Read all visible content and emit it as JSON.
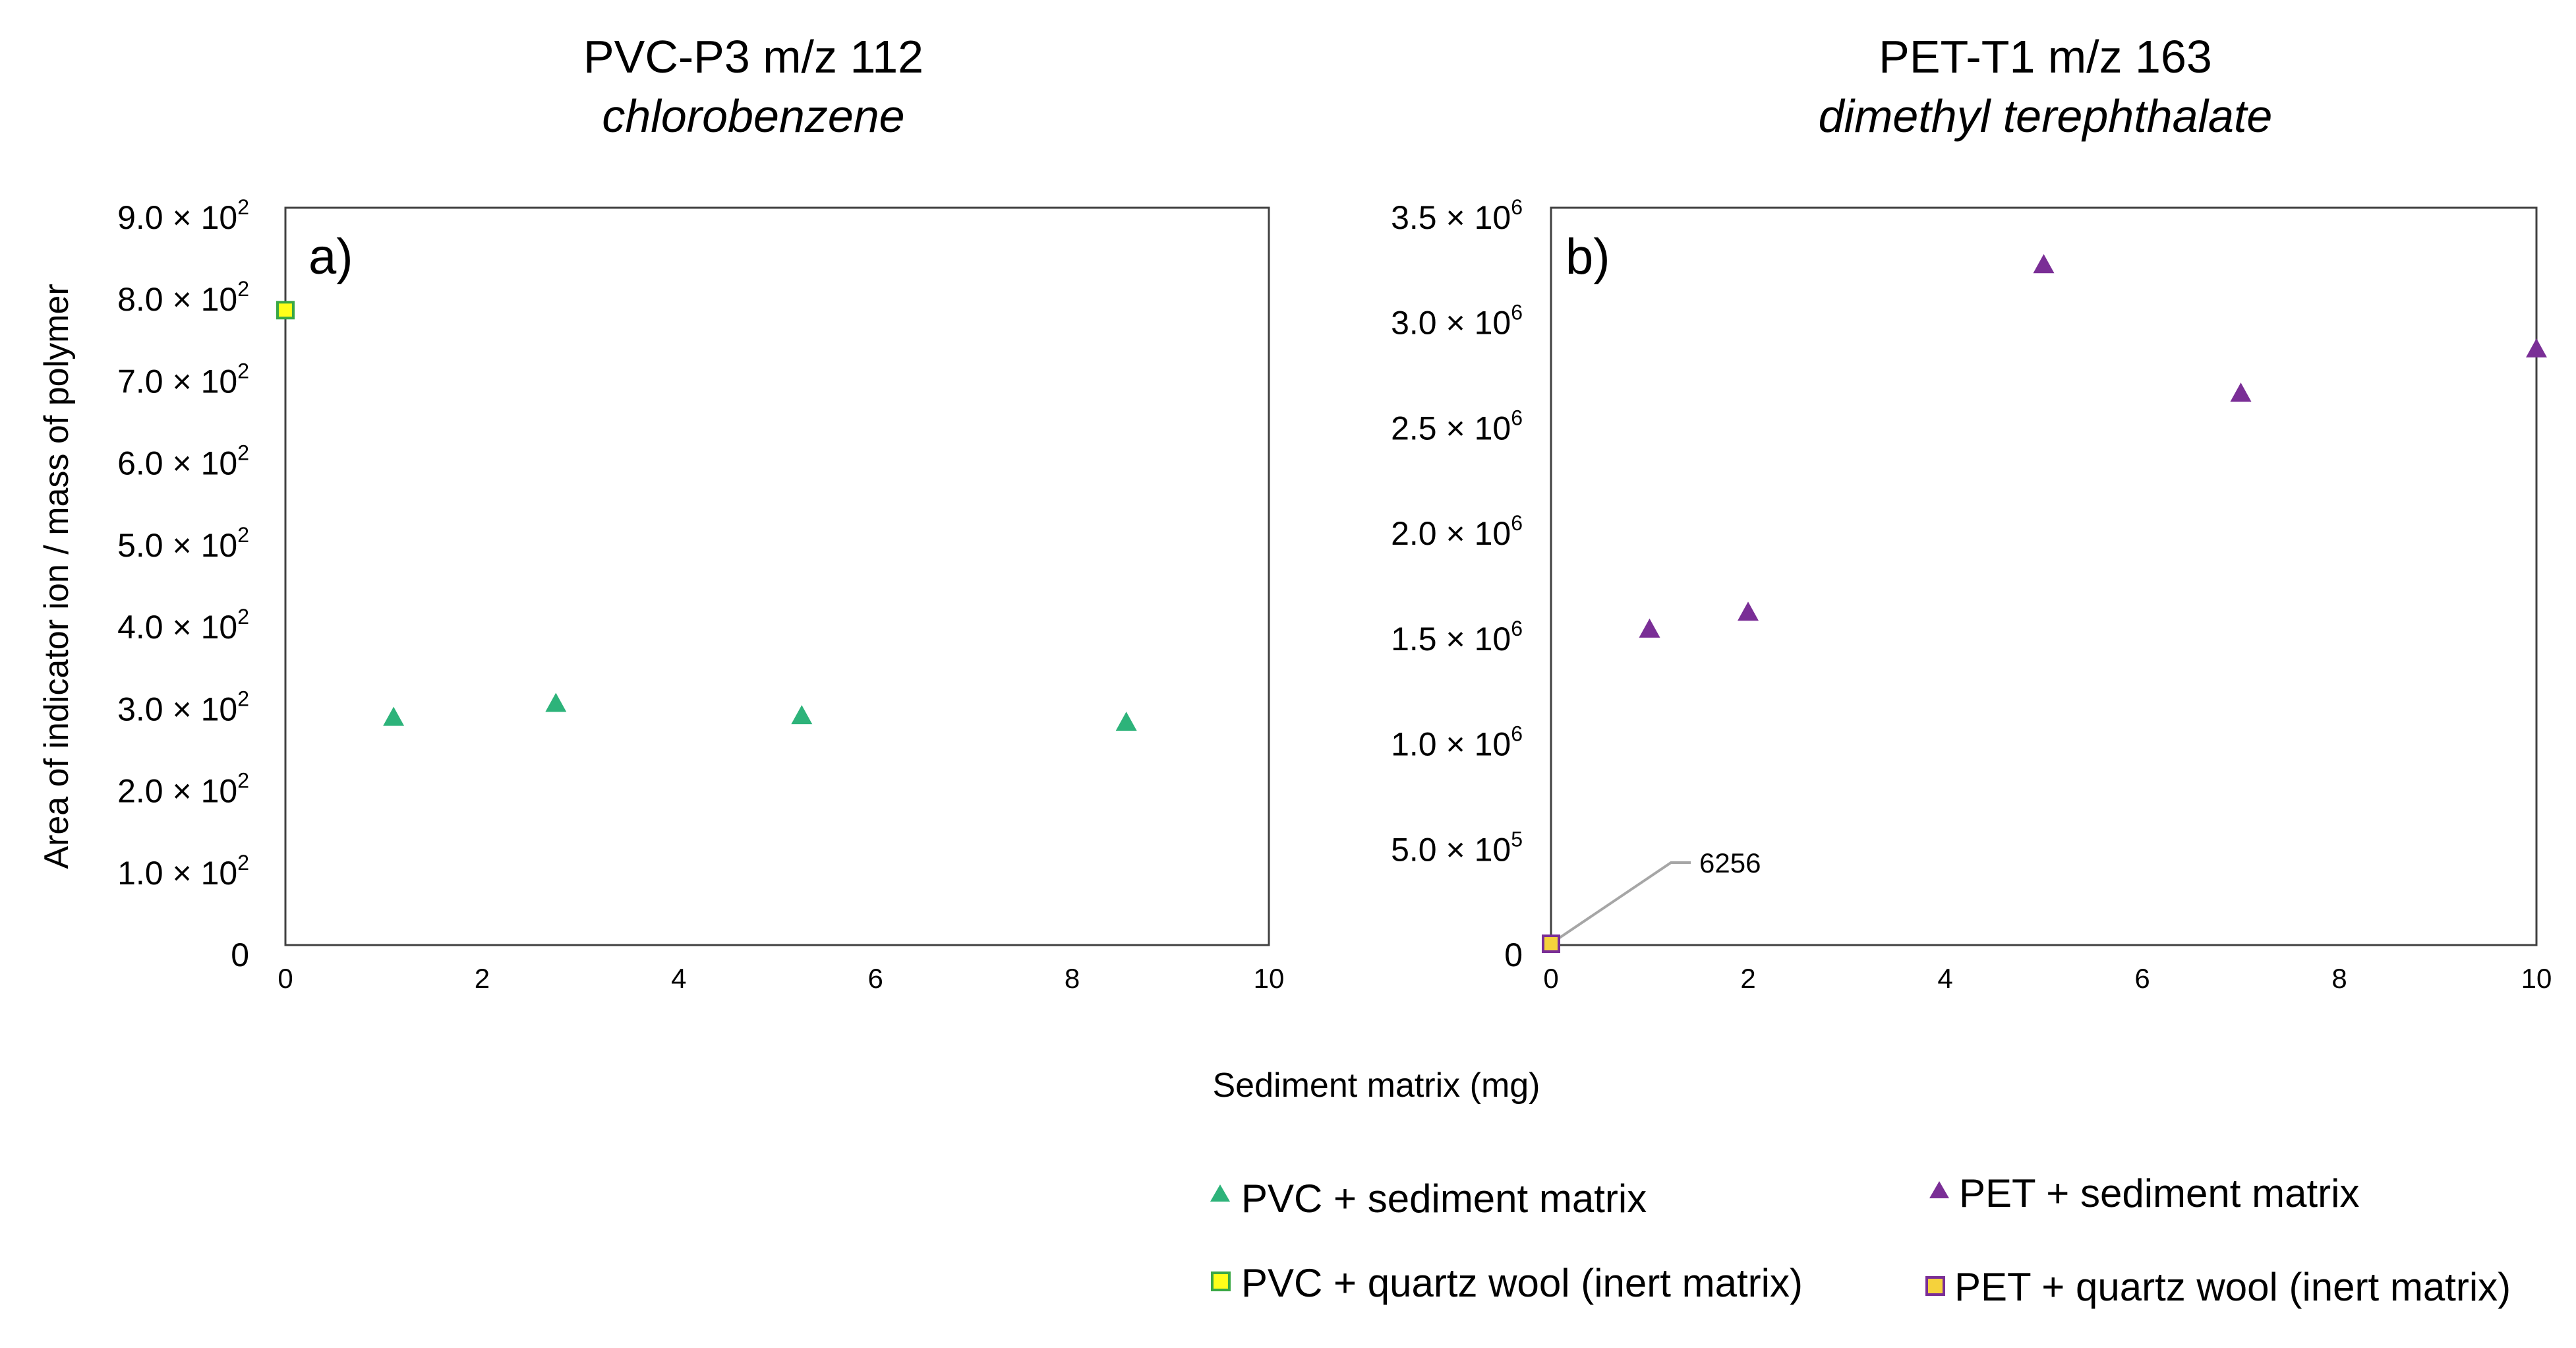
{
  "chart_data": [
    {
      "type": "scatter",
      "panel_label": "a)",
      "title": "PVC-P3 m/z 112",
      "subtitle": "chlorobenzene",
      "xlabel": "Sediment matrix (mg)",
      "ylabel": "Area of indicator ion / mass of polymer",
      "xlim": [
        0,
        10
      ],
      "ylim": [
        0,
        900
      ],
      "xticks": [
        "0",
        "2",
        "4",
        "6",
        "8",
        "10"
      ],
      "yticks": [
        {
          "value": 0,
          "mant": "0",
          "exp": ""
        },
        {
          "value": 100,
          "mant": "1.0 × 10",
          "exp": "2"
        },
        {
          "value": 200,
          "mant": "2.0 × 10",
          "exp": "2"
        },
        {
          "value": 300,
          "mant": "3.0 × 10",
          "exp": "2"
        },
        {
          "value": 400,
          "mant": "4.0 × 10",
          "exp": "2"
        },
        {
          "value": 500,
          "mant": "5.0 × 10",
          "exp": "2"
        },
        {
          "value": 600,
          "mant": "6.0 × 10",
          "exp": "2"
        },
        {
          "value": 700,
          "mant": "7.0 × 10",
          "exp": "2"
        },
        {
          "value": 800,
          "mant": "8.0 × 10",
          "exp": "2"
        },
        {
          "value": 900,
          "mant": "9.0 × 10",
          "exp": "2"
        }
      ],
      "series": [
        {
          "name": "PVC + sediment matrix",
          "marker": "triangle",
          "color": "#2db37a",
          "x": [
            1.1,
            2.75,
            5.25,
            8.55
          ],
          "y": [
            278,
            295,
            280,
            272
          ]
        },
        {
          "name": "PVC + quartz wool (inert matrix)",
          "marker": "square",
          "color": "#ffff1a",
          "edge": "#3aa845",
          "x": [
            0
          ],
          "y": [
            775
          ]
        }
      ]
    },
    {
      "type": "scatter",
      "panel_label": "b)",
      "title": "PET-T1 m/z 163",
      "subtitle": "dimethyl terephthalate",
      "xlabel": "Sediment matrix (mg)",
      "ylabel": "",
      "xlim": [
        0,
        10
      ],
      "ylim": [
        0,
        3500000
      ],
      "xticks": [
        "0",
        "2",
        "4",
        "6",
        "8",
        "10"
      ],
      "yticks": [
        {
          "value": 0,
          "mant": "0",
          "exp": ""
        },
        {
          "value": 500000,
          "mant": "5.0 × 10",
          "exp": "5"
        },
        {
          "value": 1000000,
          "mant": "1.0 × 10",
          "exp": "6"
        },
        {
          "value": 1500000,
          "mant": "1.5 × 10",
          "exp": "6"
        },
        {
          "value": 2000000,
          "mant": "2.0 × 10",
          "exp": "6"
        },
        {
          "value": 2500000,
          "mant": "2.5 × 10",
          "exp": "6"
        },
        {
          "value": 3000000,
          "mant": "3.0 × 10",
          "exp": "6"
        },
        {
          "value": 3500000,
          "mant": "3.5 × 10",
          "exp": "6"
        }
      ],
      "series": [
        {
          "name": "PET + sediment matrix",
          "marker": "triangle",
          "color": "#7a2e96",
          "x": [
            1,
            2,
            5,
            7,
            10
          ],
          "y": [
            1500000,
            1580000,
            3230000,
            2620000,
            2830000
          ]
        },
        {
          "name": "PET + quartz wool (inert matrix)",
          "marker": "square",
          "color": "#f5d23c",
          "edge": "#7a2e96",
          "x": [
            0
          ],
          "y": [
            6256
          ]
        }
      ],
      "annotations": [
        {
          "text": "6256",
          "x": 0,
          "y": 6256
        }
      ]
    }
  ],
  "legend": {
    "placement": "bottom-right",
    "items": [
      "PVC + sediment matrix",
      "PET + sediment matrix",
      "PVC + quartz wool (inert matrix)",
      "PET + quartz wool (inert matrix)"
    ]
  }
}
